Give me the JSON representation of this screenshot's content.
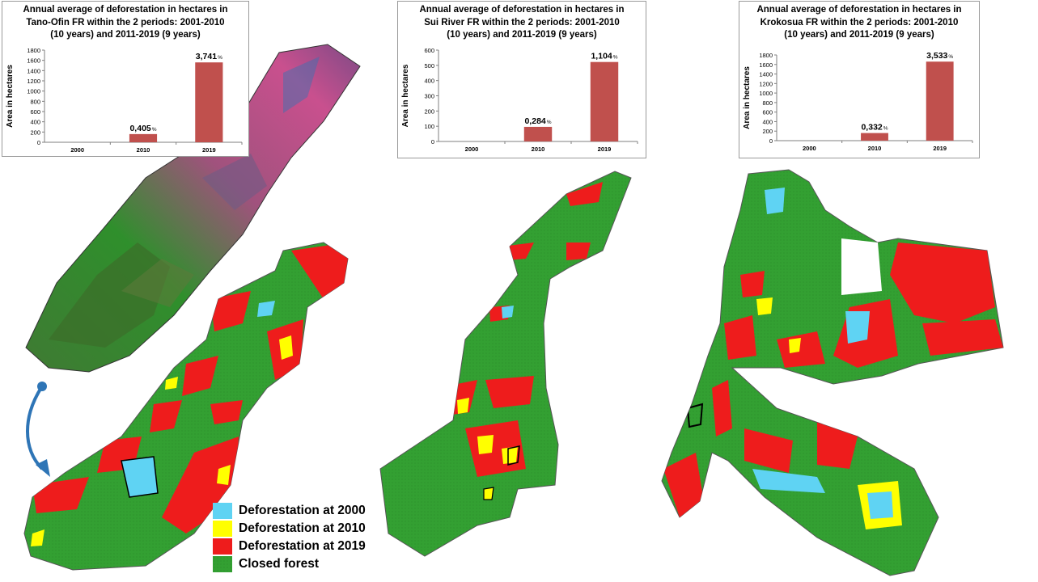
{
  "colors": {
    "deforestation_2000": "#5fd3f3",
    "deforestation_2010": "#ffff00",
    "deforestation_2019": "#ee1c1c",
    "closed_forest": "#33a032",
    "bar": "#c0504d",
    "arrow": "#2e75b6"
  },
  "chart_data": [
    {
      "type": "bar",
      "title_lines": [
        "Annual average of deforestation in hectares in",
        "Tano-Ofin FR within the 2 periods: 2001-2010",
        "(10 years) and 2011-2019 (9 years)"
      ],
      "ylabel": "Area in hectares",
      "categories": [
        "2000",
        "2010",
        "2019"
      ],
      "values": [
        0,
        160,
        1560
      ],
      "data_labels": [
        "",
        "0,405",
        "3,741"
      ],
      "label_unit": "%",
      "ylim": [
        0,
        1800
      ],
      "yticks": [
        "0",
        "200",
        "400",
        "600",
        "800",
        "1000",
        "1200",
        "1400",
        "1600",
        "1800"
      ]
    },
    {
      "type": "bar",
      "title_lines": [
        "Annual average of deforestation in hectares in",
        "Sui River FR within the 2 periods: 2001-2010",
        "(10 years) and 2011-2019 (9 years)"
      ],
      "ylabel": "Area in hectares",
      "categories": [
        "2000",
        "2010",
        "2019"
      ],
      "values": [
        0,
        96,
        522
      ],
      "data_labels": [
        "",
        "0,284",
        "1,104"
      ],
      "label_unit": "%",
      "ylim": [
        0,
        600
      ],
      "yticks": [
        "0",
        "100",
        "200",
        "300",
        "400",
        "500",
        "600"
      ]
    },
    {
      "type": "bar",
      "title_lines": [
        "Annual average of deforestation in hectares in",
        "Krokosua FR within the 2 periods: 2001-2010",
        "(10 years) and 2011-2019 (9 years)"
      ],
      "ylabel": "Area in hectares",
      "categories": [
        "2000",
        "2010",
        "2019"
      ],
      "values": [
        0,
        160,
        1660
      ],
      "data_labels": [
        "",
        "0,332",
        "3,533"
      ],
      "label_unit": "%",
      "ylim": [
        0,
        1800
      ],
      "yticks": [
        "0",
        "200",
        "400",
        "600",
        "800",
        "1000",
        "1200",
        "1400",
        "1600",
        "1800"
      ]
    }
  ],
  "legend": [
    {
      "label": "Deforestation at 2000",
      "color": "#5fd3f3"
    },
    {
      "label": "Deforestation at 2010",
      "color": "#ffff00"
    },
    {
      "label": "Deforestation at 2019",
      "color": "#ee1c1c"
    },
    {
      "label": "Closed forest",
      "color": "#33a032"
    }
  ]
}
